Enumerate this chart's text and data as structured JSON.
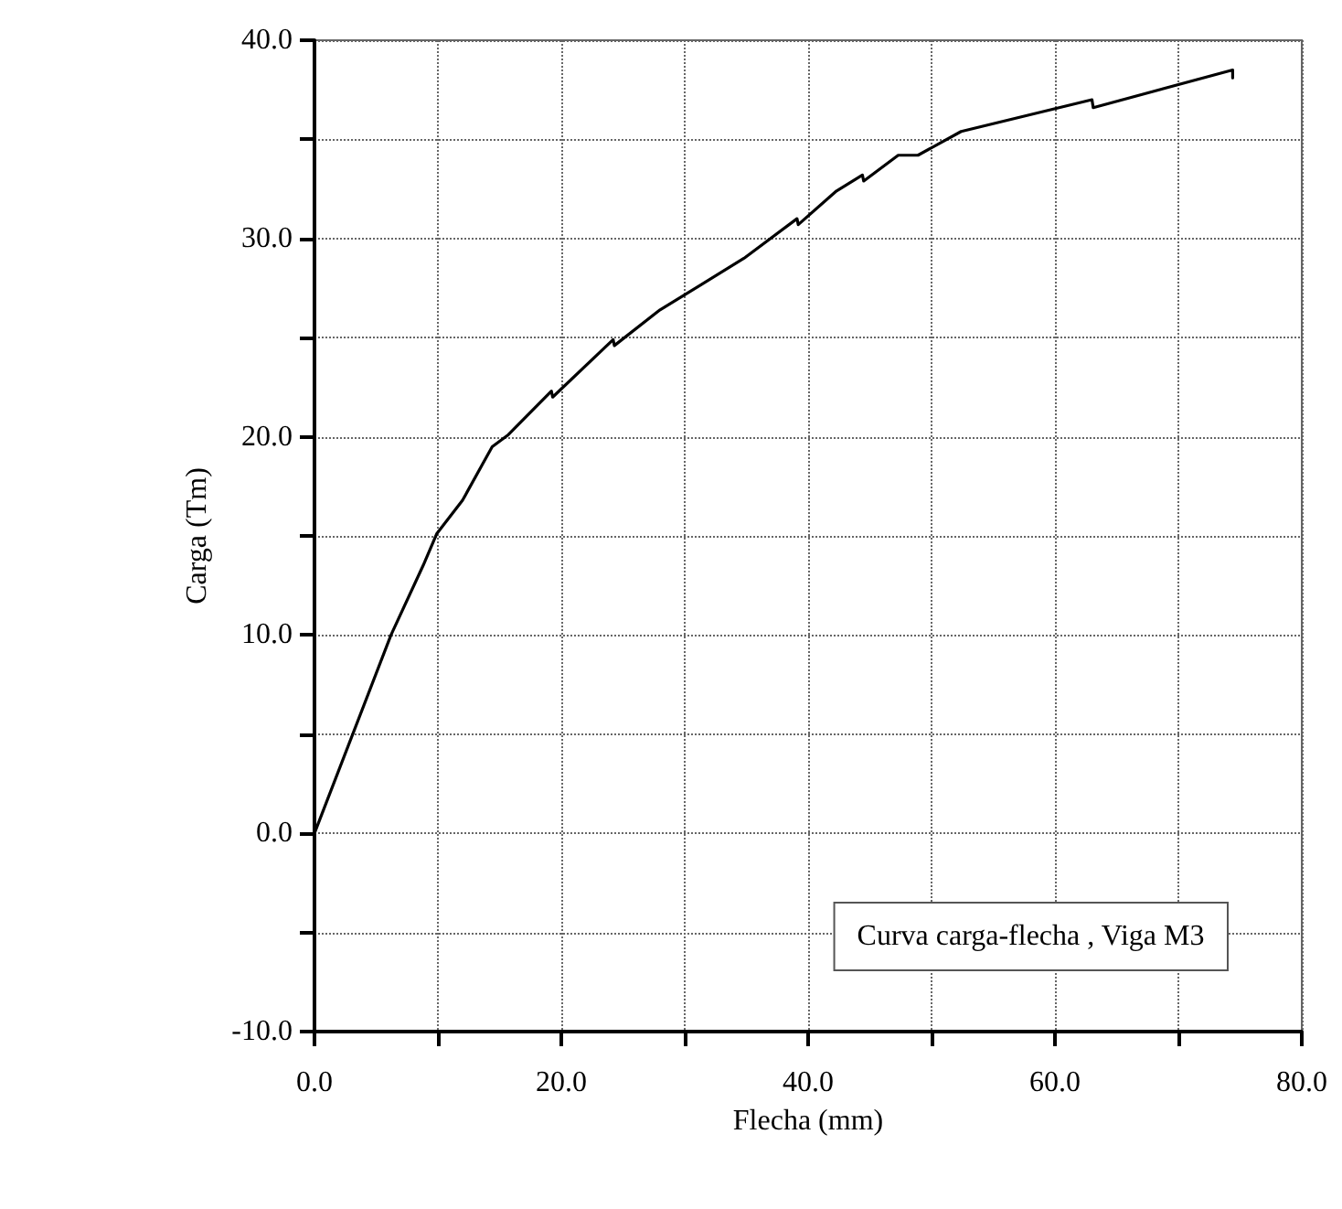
{
  "chart_data": {
    "type": "line",
    "xlabel": "Flecha (mm)",
    "ylabel": "Carga (Tm)",
    "x": [
      0,
      6.2,
      8.8,
      9.9,
      12.0,
      14.4,
      15.7,
      19.2,
      19.3,
      24.2,
      24.3,
      28.0,
      34.8,
      39.1,
      39.2,
      42.3,
      44.4,
      44.5,
      47.3,
      48.9,
      52.4,
      63.0,
      63.1,
      74.4,
      74.4
    ],
    "series": [
      {
        "color": "#000000",
        "values": [
          0,
          10.0,
          13.5,
          15.1,
          16.8,
          19.5,
          20.1,
          22.3,
          22.0,
          24.9,
          24.6,
          26.4,
          29.0,
          31.0,
          30.7,
          32.4,
          33.2,
          32.9,
          34.2,
          34.2,
          35.4,
          37.0,
          36.6,
          38.5,
          38.1
        ]
      }
    ],
    "xlim": [
      0,
      80
    ],
    "ylim": [
      -10,
      40
    ],
    "xticks": [
      {
        "value": 0,
        "label": "0.0"
      },
      {
        "value": 10,
        "label": null
      },
      {
        "value": 20,
        "label": "20.0"
      },
      {
        "value": 30,
        "label": null
      },
      {
        "value": 40,
        "label": "40.0"
      },
      {
        "value": 50,
        "label": null
      },
      {
        "value": 60,
        "label": "60.0"
      },
      {
        "value": 70,
        "label": null
      },
      {
        "value": 80,
        "label": "80.0"
      }
    ],
    "yticks": [
      {
        "value": -10,
        "label": "-10.0"
      },
      {
        "value": -5,
        "label": null
      },
      {
        "value": 0,
        "label": "0.0"
      },
      {
        "value": 5,
        "label": null
      },
      {
        "value": 10,
        "label": "10.0"
      },
      {
        "value": 15,
        "label": null
      },
      {
        "value": 20,
        "label": "20.0"
      },
      {
        "value": 25,
        "label": null
      },
      {
        "value": 30,
        "label": "30.0"
      },
      {
        "value": 35,
        "label": null
      },
      {
        "value": 40,
        "label": "40.0"
      }
    ],
    "annotations": [
      "Curva carga-flecha , Viga M3"
    ],
    "grid": true,
    "marker": "none",
    "line_style": "solid"
  }
}
